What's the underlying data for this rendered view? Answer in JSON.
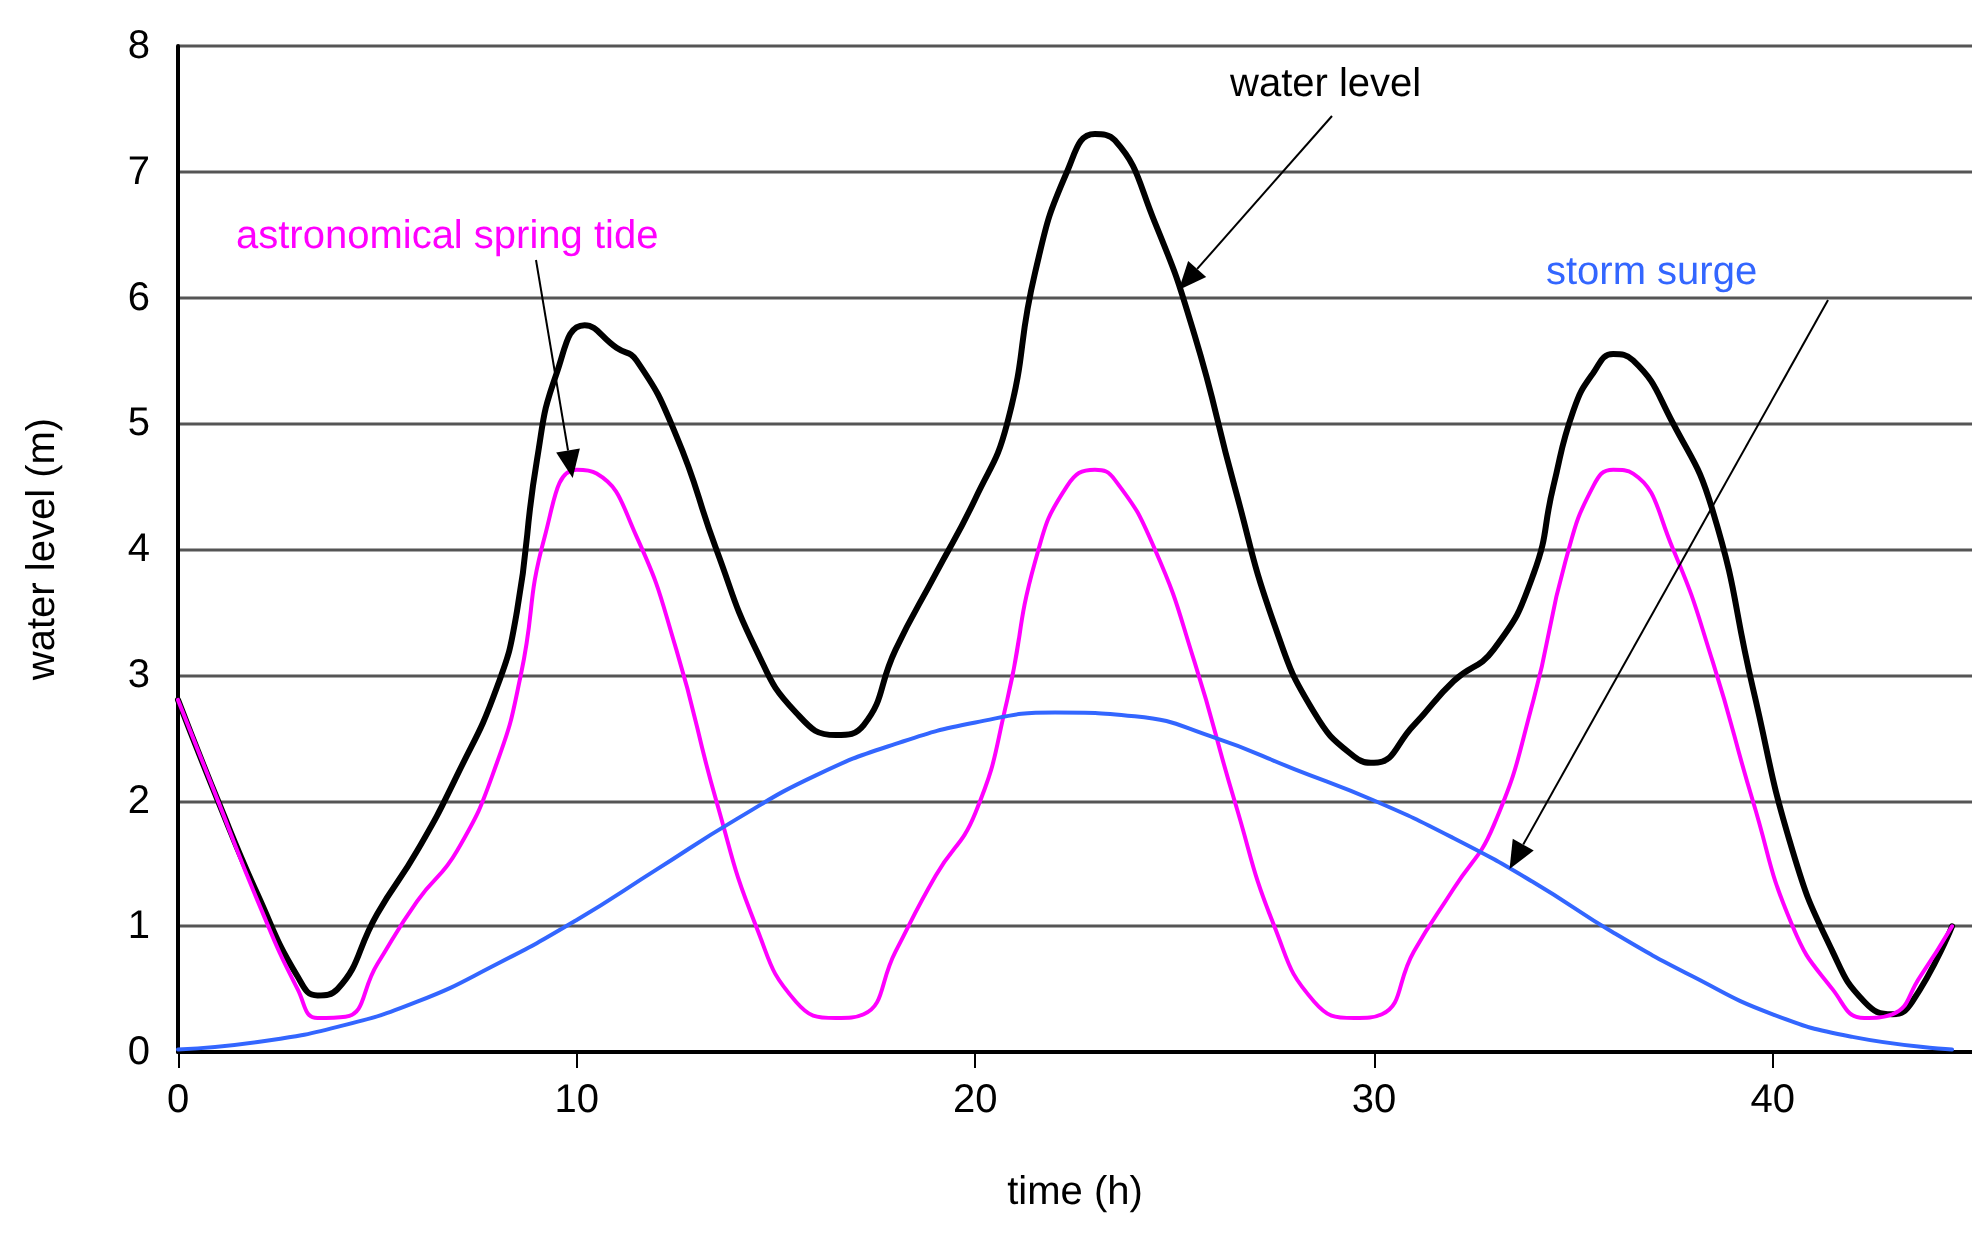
{
  "chart_data": {
    "type": "line",
    "xlabel": "time (h)",
    "ylabel": "water level (m)",
    "xlim": [
      0,
      45
    ],
    "xticks": [
      0,
      10,
      20,
      30,
      40
    ],
    "ylim": [
      0,
      8
    ],
    "yticks": [
      0,
      1,
      2,
      3,
      4,
      5,
      6,
      7,
      8
    ],
    "grid": "y",
    "legend": false,
    "marker": "none",
    "line_style": "solid",
    "series": [
      {
        "name": "water level",
        "color": "#000000",
        "x": [
          0,
          1,
          2,
          3,
          3.5,
          4,
          5,
          6,
          7,
          8,
          8.5,
          9,
          9.5,
          10.2,
          11,
          11.5,
          12.5,
          13.5,
          14.5,
          15.5,
          16.5,
          17.2,
          18,
          19,
          20,
          20.8,
          21.5,
          22.3,
          23,
          23.5,
          24.5,
          25.5,
          26.5,
          27.5,
          28.5,
          29.5,
          30,
          31,
          32,
          33,
          34,
          34.5,
          35,
          35.5,
          36,
          36.5,
          37.5,
          38.5,
          39.5,
          40.5,
          41.5,
          42.3,
          43,
          43.5,
          44.5
        ],
        "values": [
          2.8,
          2.0,
          1.25,
          0.6,
          0.45,
          0.5,
          1.1,
          1.6,
          2.2,
          2.9,
          3.5,
          4.7,
          5.4,
          5.78,
          5.6,
          5.5,
          4.9,
          4.0,
          3.2,
          2.7,
          2.52,
          2.6,
          3.2,
          3.8,
          4.4,
          5.0,
          6.2,
          7.0,
          7.3,
          7.25,
          6.6,
          5.7,
          4.5,
          3.4,
          2.7,
          2.35,
          2.3,
          2.6,
          2.95,
          3.2,
          3.8,
          4.5,
          5.1,
          5.4,
          5.55,
          5.5,
          5.0,
          4.3,
          2.9,
          1.6,
          0.8,
          0.4,
          0.3,
          0.4,
          1.0
        ]
      },
      {
        "name": "astronomical spring tide",
        "color": "#ff00ff",
        "x": [
          0,
          1,
          2,
          3,
          3.5,
          4.2,
          5,
          6,
          7,
          8,
          8.6,
          9.2,
          10,
          10.5,
          11.5,
          12.5,
          13.5,
          14.5,
          15.5,
          16.5,
          17.2,
          18,
          19,
          20,
          20.8,
          21.5,
          22.3,
          23,
          23.5,
          24.5,
          25.5,
          26.5,
          27.5,
          28.5,
          29.5,
          30.2,
          31,
          32,
          33,
          34,
          34.8,
          35.5,
          36,
          36.5,
          37.5,
          38.5,
          39.5,
          40.5,
          41.5,
          42.3,
          43,
          43.7,
          44.5
        ],
        "values": [
          2.8,
          2.0,
          1.2,
          0.5,
          0.27,
          0.28,
          0.7,
          1.2,
          1.6,
          2.3,
          3.0,
          4.1,
          4.63,
          4.6,
          4.1,
          3.2,
          2.0,
          1.0,
          0.4,
          0.27,
          0.3,
          0.8,
          1.4,
          1.9,
          2.8,
          3.9,
          4.5,
          4.63,
          4.55,
          4.0,
          3.1,
          2.0,
          1.0,
          0.4,
          0.27,
          0.3,
          0.8,
          1.3,
          1.8,
          2.8,
          3.9,
          4.5,
          4.63,
          4.6,
          4.0,
          3.1,
          2.0,
          1.0,
          0.5,
          0.27,
          0.3,
          0.6,
          1.0
        ]
      },
      {
        "name": "storm surge",
        "color": "#3366ff",
        "x": [
          0,
          2,
          4,
          6,
          8,
          10,
          12,
          14,
          16,
          18,
          20,
          22,
          24,
          26,
          28,
          30,
          32,
          34,
          36,
          38,
          40,
          42,
          44.5
        ],
        "values": [
          0.02,
          0.08,
          0.2,
          0.4,
          0.7,
          1.05,
          1.45,
          1.85,
          2.2,
          2.45,
          2.62,
          2.7,
          2.67,
          2.5,
          2.25,
          2.0,
          1.7,
          1.35,
          0.95,
          0.6,
          0.3,
          0.12,
          0.02
        ]
      }
    ]
  }
}
